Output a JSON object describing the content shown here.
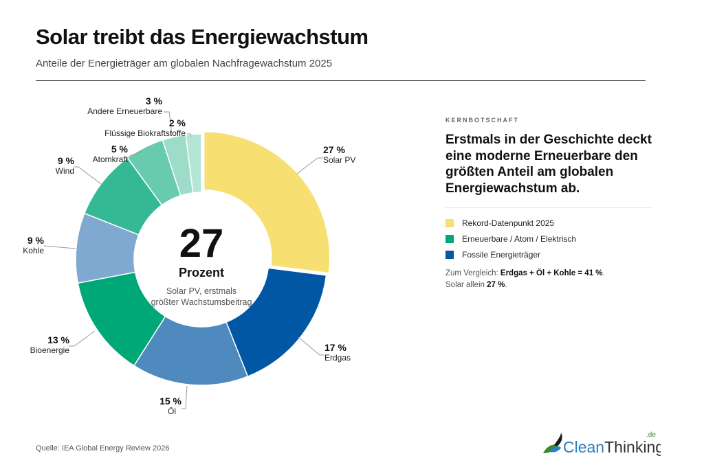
{
  "header": {
    "title": "Solar treibt das Energiewachstum",
    "subtitle": "Anteile der Energieträger am globalen Nachfragewachstum 2025"
  },
  "chart_data": {
    "type": "pie",
    "variant": "donut",
    "unit": "%",
    "categories": [
      "Solar PV",
      "Erdgas",
      "Öl",
      "Bioenergie",
      "Kohle",
      "Wind",
      "Atomkraft",
      "Andere Erneuerbare",
      "Flüssige Biokraftstoffe"
    ],
    "labels": [
      "27 %",
      "17 %",
      "15 %",
      "13 %",
      "9 %",
      "9 %",
      "5 %",
      "3 %",
      "2 %"
    ],
    "values": [
      27,
      17,
      15,
      13,
      9,
      9,
      5,
      3,
      2
    ],
    "colors": [
      "#f7df72",
      "#0157a4",
      "#4f8abf",
      "#00a878",
      "#7fa9d0",
      "#35b994",
      "#69cbae",
      "#9ddcc8",
      "#b4e6d6"
    ],
    "highlight": "Solar PV",
    "center": {
      "value": "27",
      "unit": "Prozent",
      "desc_line1": "Solar PV, erstmals",
      "desc_line2": "größter Wachstumsbeitrag"
    }
  },
  "panel": {
    "kicker": "KERNBOTSCHAFT",
    "headline": "Erstmals in der Geschichte deckt eine moderne Erneuerbare den größten Anteil am globalen Energiewachstum ab.",
    "legend": [
      {
        "label": "Rekord-Datenpunkt 2025",
        "color": "#f7df72"
      },
      {
        "label": "Erneuerbare / Atom / Elektrisch",
        "color": "#00a878"
      },
      {
        "label": "Fossile Energieträger",
        "color": "#0157a4"
      }
    ],
    "compare_prefix": "Zum Vergleich: ",
    "compare_bold": "Erdgas + Öl + Kohle = 41 %",
    "compare_suffix": ".",
    "solar_prefix": "Solar allein ",
    "solar_bold": "27 %",
    "solar_suffix": "."
  },
  "footer": {
    "source": "Quelle: IEA Global Energy Review 2026",
    "logo_text": "CleanThinking",
    "logo_tld": ".de"
  }
}
